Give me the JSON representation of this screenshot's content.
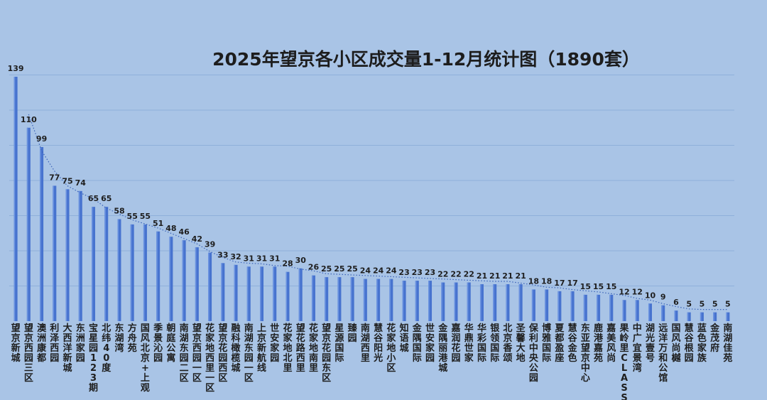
{
  "chart_data": {
    "type": "bar",
    "title": "2025年望京各小区成交量1-12月统计图（1890套）",
    "xlabel": "",
    "ylabel": "",
    "ylim": [
      0,
      150
    ],
    "grid": true,
    "trendline": "dotted",
    "categories": [
      "望京新城",
      "望京西园三区",
      "澳洲康都",
      "利泽西园",
      "大西洋新城",
      "东洲家园",
      "宝星园123期",
      "北纬40度",
      "东湖湾",
      "方舟苑",
      "国风北京+上观",
      "季景沁园",
      "朝庭公寓",
      "南湖东园二区",
      "望京西园一区",
      "花家地西里一区",
      "望京花园西区",
      "融科橄榄城",
      "南湖东园一区",
      "上京新航线",
      "世安家园",
      "花家地北里",
      "望花路西里",
      "花家地南里",
      "望京花园东区",
      "星源国际",
      "臻园",
      "南湖西里",
      "慧谷阳光",
      "花家地小区",
      "知语城",
      "金隅国际",
      "世安家园",
      "金隅丽港城",
      "嘉润花园",
      "华鼎世家",
      "华彩国际",
      "银领国际",
      "北京香颂",
      "圣馨大地",
      "保利中央公园",
      "博雅国际",
      "夏都盈座",
      "慧谷金色",
      "东亚望京中心",
      "鹿港嘉苑",
      "嘉美风尚",
      "果岭里CLASS",
      "中广宜景湾",
      "湖光壹号",
      "远洋万和公馆",
      "国风尚樾",
      "慧谷根园",
      "蓝色家族",
      "金茂府",
      "南湖佳苑"
    ],
    "values": [
      139,
      110,
      99,
      77,
      75,
      74,
      65,
      65,
      58,
      55,
      55,
      51,
      48,
      46,
      42,
      39,
      33,
      32,
      31,
      31,
      31,
      28,
      30,
      26,
      25,
      25,
      25,
      24,
      24,
      24,
      23,
      23,
      23,
      22,
      22,
      22,
      21,
      21,
      21,
      21,
      18,
      18,
      17,
      17,
      15,
      15,
      15,
      12,
      12,
      10,
      9,
      6,
      5,
      5,
      5,
      5
    ],
    "value_labels": [
      "139",
      "110",
      "99",
      "77",
      "75",
      "74",
      "65",
      "65",
      "58",
      "55",
      "55",
      "51",
      "48",
      "46",
      "42",
      "39",
      "33",
      "32",
      "31",
      "31",
      "31",
      "28",
      "30",
      "26",
      "25",
      "25",
      "25",
      "24",
      "24",
      "24",
      "23",
      "23",
      "23",
      "22",
      "22",
      "22",
      "21",
      "21",
      "21",
      "21",
      "18",
      "18",
      "17",
      "17",
      "15",
      "15",
      "15",
      "12",
      "12",
      "10",
      "9",
      "6",
      "5",
      "5",
      "5",
      "5"
    ],
    "colors": {
      "background": "#a9c4e6",
      "bar": "#4773cf",
      "bar_highlight": "#6b93e0",
      "grid": "#8fb0da",
      "trend": "#3b63b8",
      "text": "#1e1e1e"
    }
  }
}
